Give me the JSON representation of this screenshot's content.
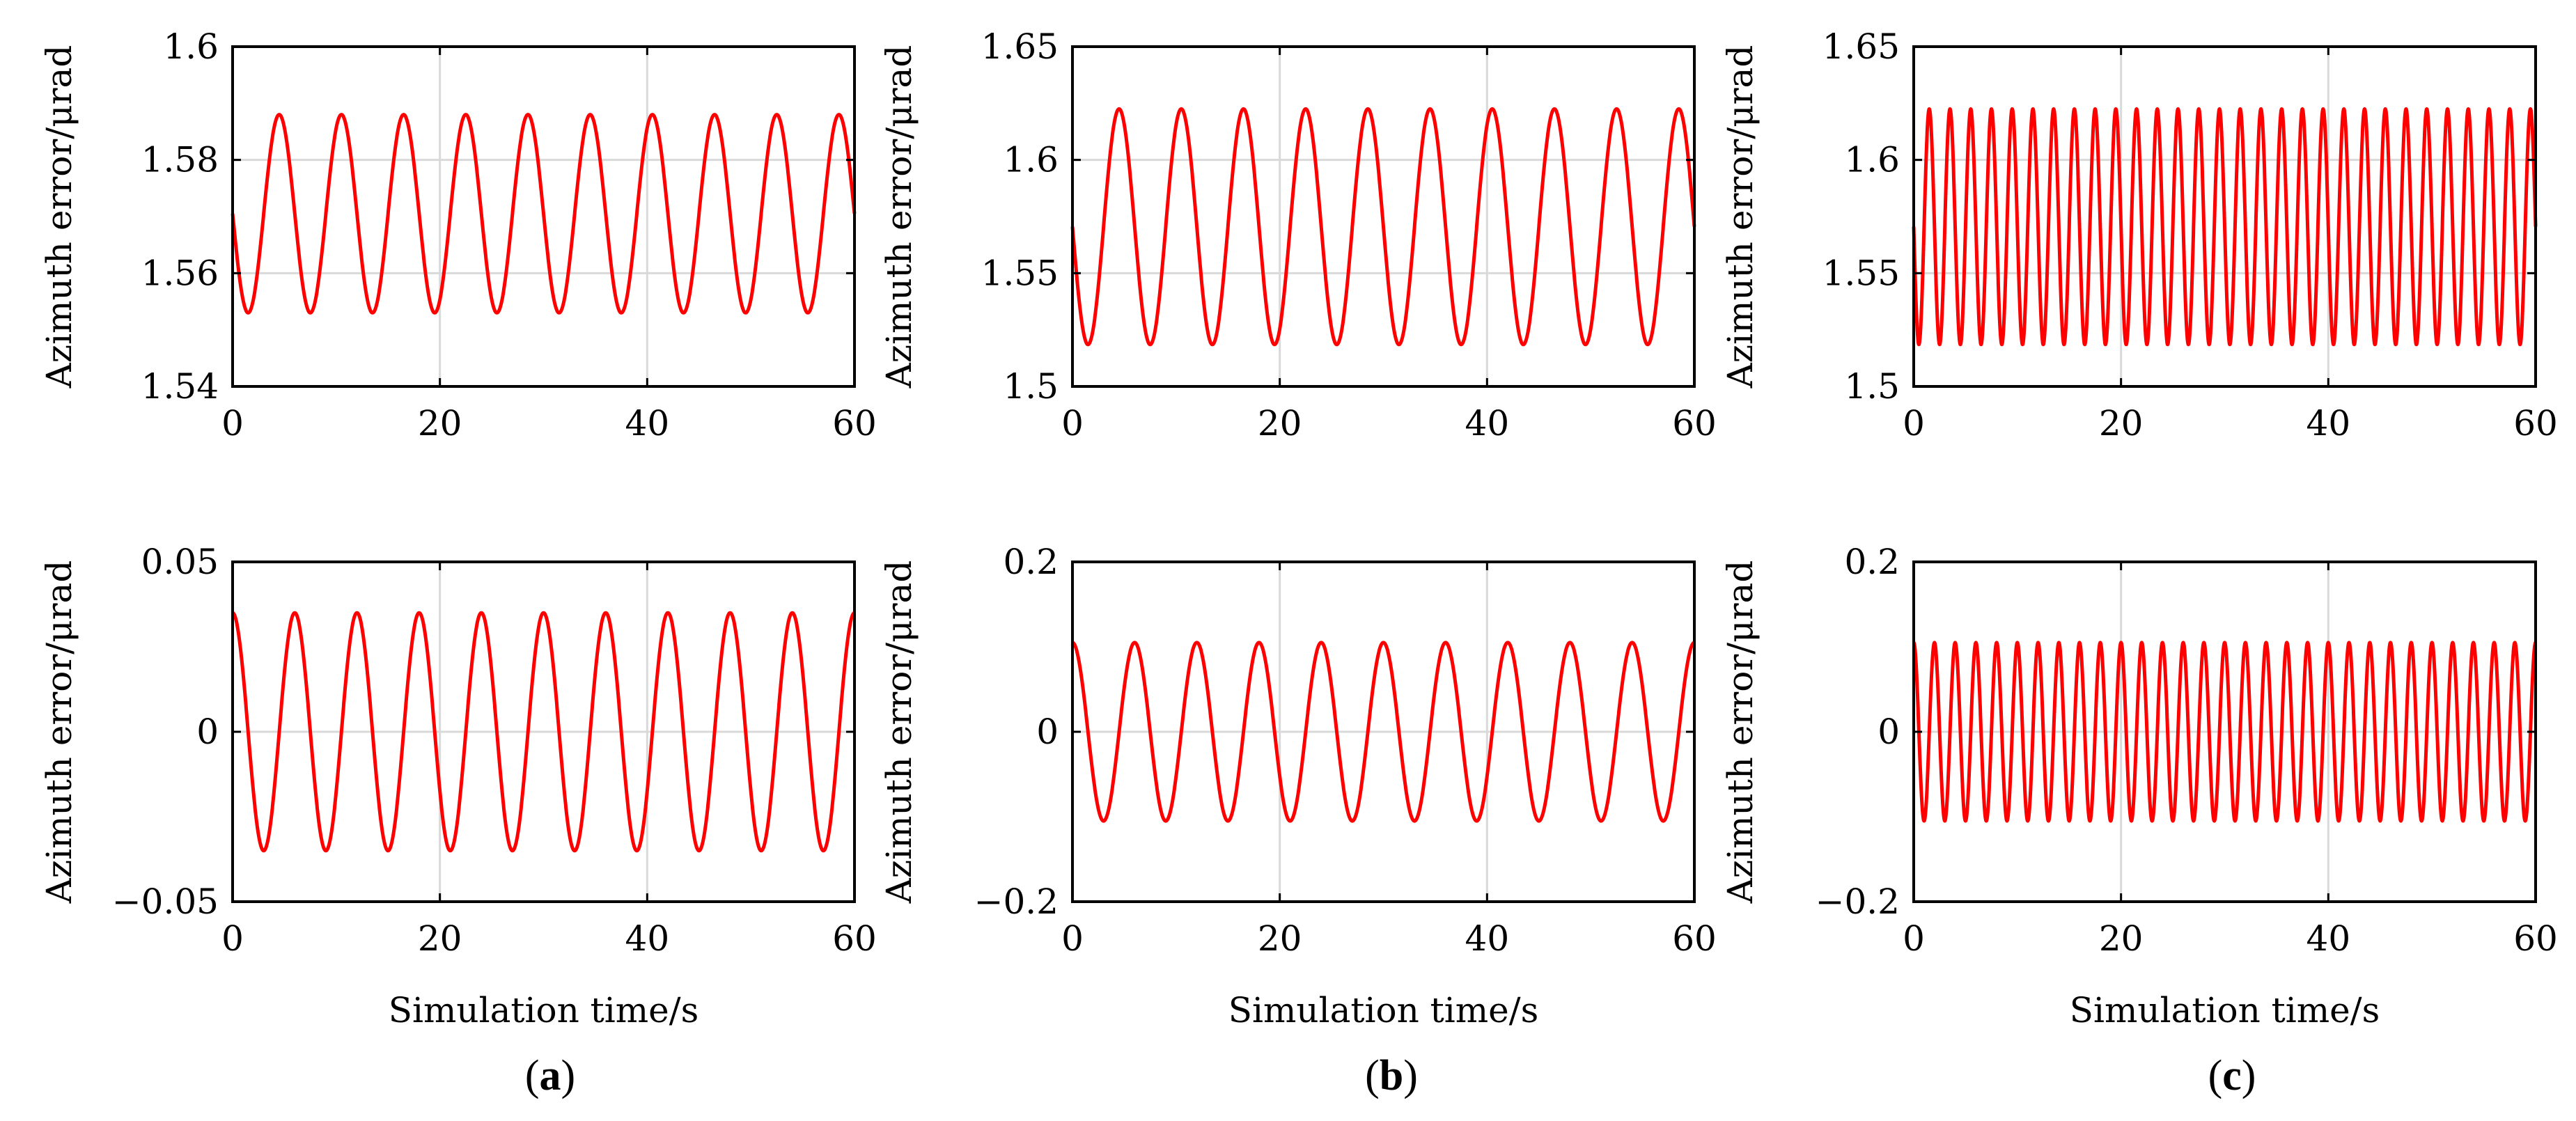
{
  "panel_labels": [
    {
      "open": "(",
      "letter": "a",
      "close": ")"
    },
    {
      "open": "(",
      "letter": "b",
      "close": ")"
    },
    {
      "open": "(",
      "letter": "c",
      "close": ")"
    }
  ],
  "colors": {
    "line": "#ff0000",
    "grid": "#d9d9d9",
    "axis": "#000000"
  },
  "chart_data": [
    {
      "id": "a-top",
      "type": "line",
      "title": "",
      "xlabel": "",
      "ylabel": "Azimuth error/μrad",
      "xlim": [
        0,
        60
      ],
      "ylim": [
        1.54,
        1.6
      ],
      "xticks": [
        0,
        20,
        40,
        60
      ],
      "xtick_labels": [
        "0",
        "20",
        "40",
        "60"
      ],
      "yticks": [
        1.54,
        1.56,
        1.58,
        1.6
      ],
      "ytick_labels": [
        "1.54",
        "1.56",
        "1.58",
        "1.6"
      ],
      "series": [
        {
          "name": "azimuth error",
          "kind": "sine",
          "offset": 1.5705,
          "amplitude": 0.0175,
          "period": 6.0,
          "phase_deg": 180
        }
      ]
    },
    {
      "id": "b-top",
      "type": "line",
      "title": "",
      "xlabel": "",
      "ylabel": "Azimuth error/μrad",
      "xlim": [
        0,
        60
      ],
      "ylim": [
        1.5,
        1.65
      ],
      "xticks": [
        0,
        20,
        40,
        60
      ],
      "xtick_labels": [
        "0",
        "20",
        "40",
        "60"
      ],
      "yticks": [
        1.5,
        1.55,
        1.6,
        1.65
      ],
      "ytick_labels": [
        "1.5",
        "1.55",
        "1.6",
        "1.65"
      ],
      "series": [
        {
          "name": "azimuth error",
          "kind": "sine",
          "offset": 1.5705,
          "amplitude": 0.052,
          "period": 6.0,
          "phase_deg": 180
        }
      ]
    },
    {
      "id": "c-top",
      "type": "line",
      "title": "",
      "xlabel": "",
      "ylabel": "Azimuth error/μrad",
      "xlim": [
        0,
        60
      ],
      "ylim": [
        1.5,
        1.65
      ],
      "xticks": [
        0,
        20,
        40,
        60
      ],
      "xtick_labels": [
        "0",
        "20",
        "40",
        "60"
      ],
      "yticks": [
        1.5,
        1.55,
        1.6,
        1.65
      ],
      "ytick_labels": [
        "1.5",
        "1.55",
        "1.6",
        "1.65"
      ],
      "series": [
        {
          "name": "azimuth error",
          "kind": "sine",
          "offset": 1.5705,
          "amplitude": 0.052,
          "period": 2.0,
          "phase_deg": 180
        }
      ]
    },
    {
      "id": "a-bottom",
      "type": "line",
      "title": "",
      "xlabel": "Simulation time/s",
      "ylabel": "Azimuth error/μrad",
      "xlim": [
        0,
        60
      ],
      "ylim": [
        -0.05,
        0.05
      ],
      "xticks": [
        0,
        20,
        40,
        60
      ],
      "xtick_labels": [
        "0",
        "20",
        "40",
        "60"
      ],
      "yticks": [
        -0.05,
        0,
        0.05
      ],
      "ytick_labels": [
        "−0.05",
        "0",
        "0.05"
      ],
      "series": [
        {
          "name": "azimuth error",
          "kind": "sine",
          "offset": 0,
          "amplitude": 0.035,
          "period": 6.0,
          "phase_deg": 90
        }
      ]
    },
    {
      "id": "b-bottom",
      "type": "line",
      "title": "",
      "xlabel": "Simulation time/s",
      "ylabel": "Azimuth error/μrad",
      "xlim": [
        0,
        60
      ],
      "ylim": [
        -0.2,
        0.2
      ],
      "xticks": [
        0,
        20,
        40,
        60
      ],
      "xtick_labels": [
        "0",
        "20",
        "40",
        "60"
      ],
      "yticks": [
        -0.2,
        0,
        0.2
      ],
      "ytick_labels": [
        "−0.2",
        "0",
        "0.2"
      ],
      "series": [
        {
          "name": "azimuth error",
          "kind": "sine",
          "offset": 0,
          "amplitude": 0.105,
          "period": 6.0,
          "phase_deg": 90
        }
      ]
    },
    {
      "id": "c-bottom",
      "type": "line",
      "title": "",
      "xlabel": "Simulation time/s",
      "ylabel": "Azimuth error/μrad",
      "xlim": [
        0,
        60
      ],
      "ylim": [
        -0.2,
        0.2
      ],
      "xticks": [
        0,
        20,
        40,
        60
      ],
      "xtick_labels": [
        "0",
        "20",
        "40",
        "60"
      ],
      "yticks": [
        -0.2,
        0,
        0.2
      ],
      "ytick_labels": [
        "−0.2",
        "0",
        "0.2"
      ],
      "series": [
        {
          "name": "azimuth error",
          "kind": "sine",
          "offset": 0,
          "amplitude": 0.105,
          "period": 2.0,
          "phase_deg": 90
        }
      ]
    }
  ]
}
